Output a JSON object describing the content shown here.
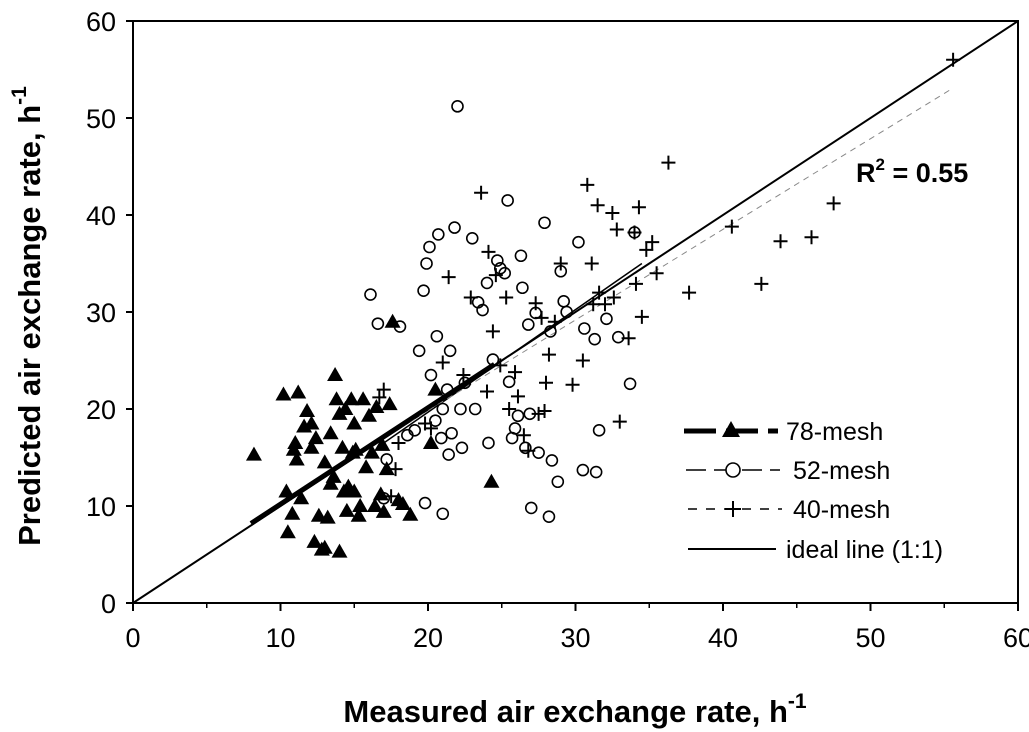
{
  "chart_data": {
    "type": "scatter",
    "title": "",
    "xlabel": "Measured air exchange rate, h",
    "xlabel_sup": "-1",
    "ylabel": "Predicted air exchange rate, h",
    "ylabel_sup": "-1",
    "xlim": [
      0,
      60
    ],
    "ylim": [
      0,
      60
    ],
    "xticks": [
      "0",
      "10",
      "20",
      "30",
      "40",
      "50",
      "60"
    ],
    "yticks": [
      "0",
      "10",
      "20",
      "30",
      "40",
      "50",
      "60"
    ],
    "grid": false,
    "legend_position": "bottom-right",
    "annotation": {
      "base": "R",
      "sup": "2",
      "rest": " = 0.55"
    },
    "legend": [
      {
        "label": "78-mesh",
        "marker": "triangle",
        "line": "long-dash-thick"
      },
      {
        "label": "52-mesh",
        "marker": "circle",
        "line": "long-dash"
      },
      {
        "label": "40-mesh",
        "marker": "plus",
        "line": "short-dash"
      },
      {
        "label": "ideal line (1:1)",
        "marker": "none",
        "line": "solid"
      }
    ],
    "series": [
      {
        "name": "78-mesh",
        "marker": "triangle",
        "fit": [
          [
            8,
            8.2
          ],
          [
            24.5,
            24.6
          ]
        ],
        "points": [
          [
            8.2,
            15.3
          ],
          [
            10.2,
            21.5
          ],
          [
            10.4,
            11.5
          ],
          [
            10.5,
            7.3
          ],
          [
            10.8,
            9.2
          ],
          [
            10.9,
            15.8
          ],
          [
            11.0,
            16.5
          ],
          [
            11.2,
            21.7
          ],
          [
            11.4,
            10.8
          ],
          [
            11.6,
            18.2
          ],
          [
            11.8,
            19.8
          ],
          [
            12.1,
            16.0
          ],
          [
            12.3,
            6.3
          ],
          [
            12.4,
            17.0
          ],
          [
            12.6,
            9.0
          ],
          [
            12.8,
            5.5
          ],
          [
            13.0,
            5.7
          ],
          [
            13.0,
            14.5
          ],
          [
            13.2,
            8.8
          ],
          [
            13.4,
            17.5
          ],
          [
            13.6,
            13.0
          ],
          [
            13.7,
            23.5
          ],
          [
            13.8,
            21.0
          ],
          [
            14.0,
            19.5
          ],
          [
            14.0,
            5.3
          ],
          [
            14.2,
            16.0
          ],
          [
            14.3,
            11.5
          ],
          [
            14.4,
            20.0
          ],
          [
            14.5,
            9.5
          ],
          [
            14.6,
            12.0
          ],
          [
            14.8,
            21.0
          ],
          [
            15.0,
            18.5
          ],
          [
            15.1,
            15.8
          ],
          [
            15.3,
            9.0
          ],
          [
            15.4,
            10.0
          ],
          [
            15.6,
            21.0
          ],
          [
            15.8,
            14.0
          ],
          [
            16.0,
            19.3
          ],
          [
            16.2,
            15.5
          ],
          [
            16.4,
            10.0
          ],
          [
            16.5,
            20.2
          ],
          [
            16.8,
            11.2
          ],
          [
            17.0,
            9.4
          ],
          [
            17.2,
            13.8
          ],
          [
            17.4,
            20.5
          ],
          [
            17.6,
            29.0
          ],
          [
            18.0,
            10.6
          ],
          [
            18.3,
            10.2
          ],
          [
            18.8,
            9.1
          ],
          [
            20.2,
            16.5
          ],
          [
            20.5,
            22.0
          ],
          [
            24.3,
            12.5
          ],
          [
            14.9,
            15.5
          ],
          [
            12.1,
            18.5
          ],
          [
            11.1,
            14.8
          ],
          [
            13.4,
            12.3
          ],
          [
            16.9,
            16.3
          ],
          [
            15.0,
            11.5
          ]
        ]
      },
      {
        "name": "52-mesh",
        "marker": "circle",
        "fit": [
          [
            17,
            16.5
          ],
          [
            34.5,
            35
          ]
        ],
        "points": [
          [
            16.1,
            31.8
          ],
          [
            16.6,
            28.8
          ],
          [
            17.0,
            10.8
          ],
          [
            17.2,
            14.8
          ],
          [
            18.1,
            28.5
          ],
          [
            18.6,
            17.3
          ],
          [
            19.1,
            17.8
          ],
          [
            19.4,
            26.0
          ],
          [
            19.7,
            32.2
          ],
          [
            19.9,
            35.0
          ],
          [
            19.8,
            10.3
          ],
          [
            20.1,
            36.7
          ],
          [
            20.2,
            23.5
          ],
          [
            20.5,
            18.8
          ],
          [
            20.6,
            27.5
          ],
          [
            20.7,
            38.0
          ],
          [
            20.9,
            17.0
          ],
          [
            21.0,
            20.0
          ],
          [
            21.0,
            9.2
          ],
          [
            21.3,
            22.0
          ],
          [
            21.4,
            15.3
          ],
          [
            21.5,
            26.0
          ],
          [
            21.6,
            17.5
          ],
          [
            21.8,
            38.7
          ],
          [
            22.0,
            51.2
          ],
          [
            22.2,
            20.0
          ],
          [
            22.3,
            16.0
          ],
          [
            22.5,
            22.7
          ],
          [
            23.0,
            37.6
          ],
          [
            23.2,
            20.0
          ],
          [
            23.4,
            31.0
          ],
          [
            23.7,
            30.2
          ],
          [
            24.0,
            33.0
          ],
          [
            24.1,
            16.5
          ],
          [
            24.4,
            25.1
          ],
          [
            24.7,
            35.3
          ],
          [
            24.9,
            34.5
          ],
          [
            25.2,
            34.0
          ],
          [
            25.4,
            41.5
          ],
          [
            25.5,
            22.8
          ],
          [
            25.7,
            17.0
          ],
          [
            25.9,
            18.0
          ],
          [
            26.1,
            19.3
          ],
          [
            26.3,
            35.8
          ],
          [
            26.4,
            32.5
          ],
          [
            26.6,
            16.0
          ],
          [
            26.8,
            28.7
          ],
          [
            26.9,
            19.5
          ],
          [
            27.0,
            9.8
          ],
          [
            27.3,
            29.9
          ],
          [
            27.5,
            15.5
          ],
          [
            27.9,
            39.2
          ],
          [
            28.2,
            8.9
          ],
          [
            28.3,
            28.0
          ],
          [
            28.4,
            14.7
          ],
          [
            28.8,
            12.5
          ],
          [
            29.0,
            34.2
          ],
          [
            29.2,
            31.1
          ],
          [
            29.4,
            30.0
          ],
          [
            30.2,
            37.2
          ],
          [
            30.5,
            13.7
          ],
          [
            30.6,
            28.3
          ],
          [
            31.3,
            27.2
          ],
          [
            31.4,
            13.5
          ],
          [
            31.6,
            17.8
          ],
          [
            32.1,
            29.3
          ],
          [
            32.9,
            27.4
          ],
          [
            33.7,
            22.6
          ],
          [
            34.0,
            38.2
          ]
        ]
      },
      {
        "name": "40-mesh",
        "marker": "plus",
        "fit": [
          [
            17.5,
            17.5
          ],
          [
            55.5,
            53
          ]
        ],
        "points": [
          [
            16.7,
            21.2
          ],
          [
            17.0,
            22.0
          ],
          [
            17.5,
            11.0
          ],
          [
            17.8,
            13.8
          ],
          [
            18.0,
            16.5
          ],
          [
            19.8,
            18.5
          ],
          [
            20.2,
            18.0
          ],
          [
            21.0,
            24.8
          ],
          [
            21.4,
            33.6
          ],
          [
            22.4,
            23.5
          ],
          [
            22.9,
            31.5
          ],
          [
            23.6,
            42.3
          ],
          [
            24.0,
            21.8
          ],
          [
            24.1,
            36.2
          ],
          [
            24.4,
            28.0
          ],
          [
            24.6,
            33.8
          ],
          [
            24.9,
            24.5
          ],
          [
            25.3,
            31.5
          ],
          [
            25.5,
            20.0
          ],
          [
            25.9,
            23.8
          ],
          [
            26.1,
            21.3
          ],
          [
            26.5,
            17.3
          ],
          [
            26.8,
            15.7
          ],
          [
            27.3,
            30.9
          ],
          [
            27.5,
            19.5
          ],
          [
            27.7,
            29.4
          ],
          [
            27.9,
            19.8
          ],
          [
            28.0,
            22.7
          ],
          [
            28.2,
            25.6
          ],
          [
            28.6,
            29.0
          ],
          [
            29.0,
            35.0
          ],
          [
            29.8,
            22.5
          ],
          [
            30.5,
            25.0
          ],
          [
            30.8,
            43.1
          ],
          [
            31.1,
            35.0
          ],
          [
            31.2,
            30.8
          ],
          [
            31.5,
            41.0
          ],
          [
            31.6,
            32.0
          ],
          [
            32.0,
            30.8
          ],
          [
            32.5,
            40.2
          ],
          [
            32.6,
            31.5
          ],
          [
            32.8,
            38.5
          ],
          [
            33.0,
            18.7
          ],
          [
            33.6,
            27.3
          ],
          [
            34.0,
            38.2
          ],
          [
            34.1,
            32.9
          ],
          [
            34.3,
            40.8
          ],
          [
            34.5,
            29.5
          ],
          [
            34.8,
            36.4
          ],
          [
            35.2,
            37.2
          ],
          [
            35.5,
            34.0
          ],
          [
            36.3,
            45.4
          ],
          [
            37.7,
            32.0
          ],
          [
            40.6,
            38.8
          ],
          [
            42.6,
            32.9
          ],
          [
            43.9,
            37.3
          ],
          [
            46.0,
            37.7
          ],
          [
            47.5,
            41.2
          ],
          [
            55.6,
            56.0
          ]
        ]
      }
    ]
  }
}
